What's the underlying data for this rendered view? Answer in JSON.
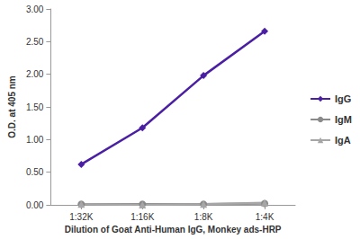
{
  "chart_data": {
    "type": "line",
    "categories": [
      "1:32K",
      "1:16K",
      "1:8K",
      "1:4K"
    ],
    "x_label": "Dilution of Goat Anti-Human IgG, Monkey ads-HRP",
    "y_label": "O.D. at 405 nm",
    "series": [
      {
        "name": "IgG",
        "color": "#4b1fa3",
        "marker": "diamond",
        "values": [
          0.62,
          1.18,
          1.98,
          2.66
        ]
      },
      {
        "name": "IgM",
        "color": "#8a8a8a",
        "marker": "circle",
        "values": [
          0.01,
          0.01,
          0.01,
          0.02
        ]
      },
      {
        "name": "IgA",
        "color": "#a6a6a6",
        "marker": "triangle",
        "values": [
          0.01,
          0.0,
          0.01,
          0.03
        ]
      }
    ],
    "ylim": [
      0,
      3
    ],
    "yticks": [
      {
        "value": 0,
        "label": "0.00"
      },
      {
        "value": 0.5,
        "label": "0.50"
      },
      {
        "value": 1,
        "label": "1.00"
      },
      {
        "value": 1.5,
        "label": "1.50"
      },
      {
        "value": 2,
        "label": "2.00"
      },
      {
        "value": 2.5,
        "label": "2.50"
      },
      {
        "value": 3,
        "label": "3.00"
      }
    ],
    "grid": false,
    "legend": "right"
  }
}
